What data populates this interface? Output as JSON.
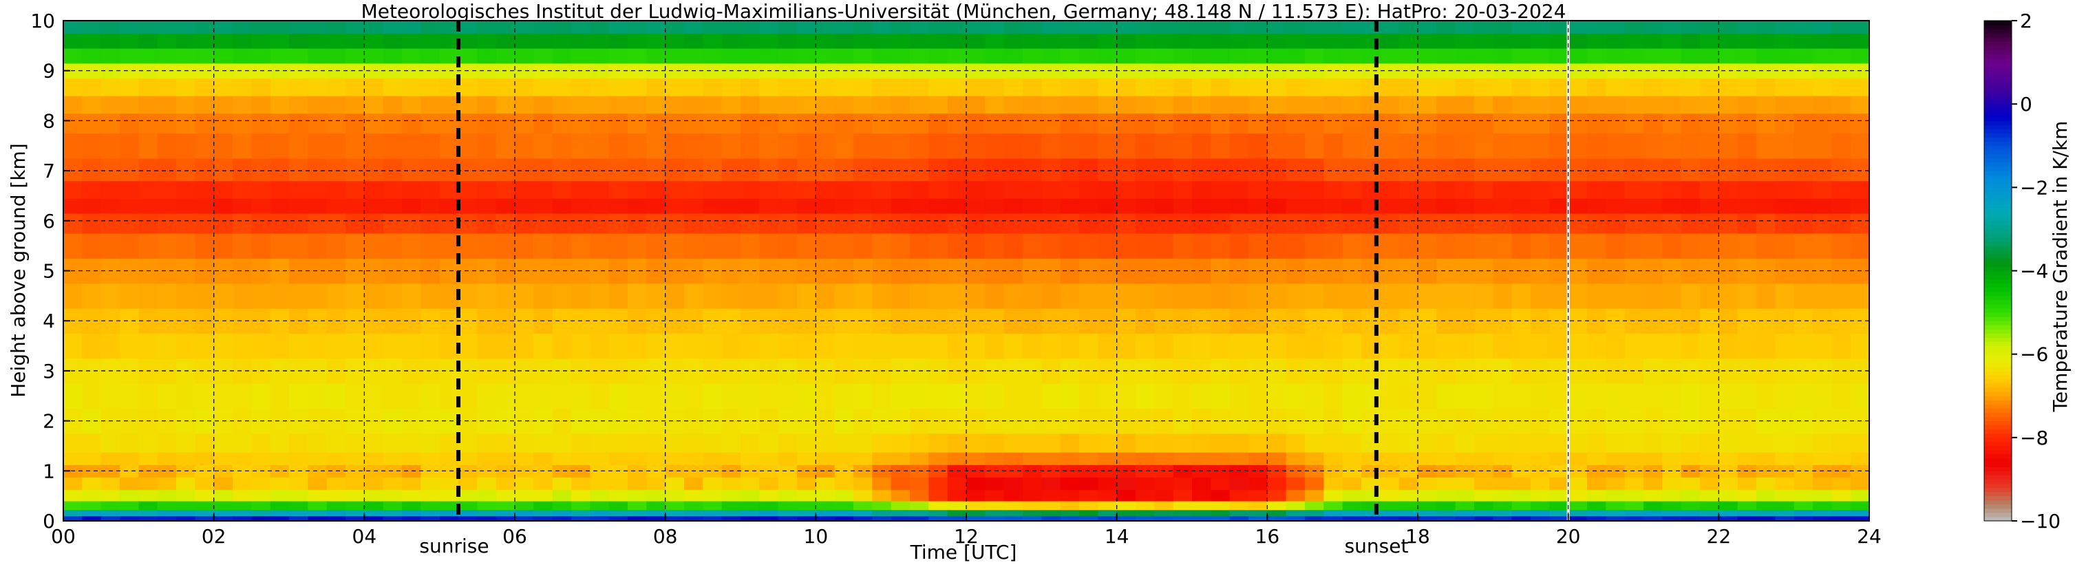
{
  "chart_data": {
    "type": "heatmap",
    "title": "Meteorologisches Institut der Ludwig-Maximilians-Universität (München, Germany; 48.148 N / 11.573 E):    HatPro: 20-03-2024",
    "xlabel": "Time [UTC]",
    "ylabel": "Height above ground [km]",
    "xlim": [
      0,
      24
    ],
    "ylim": [
      0,
      10
    ],
    "x_ticks": [
      "00",
      "02",
      "04",
      "06",
      "08",
      "10",
      "12",
      "14",
      "16",
      "18",
      "20",
      "22",
      "24"
    ],
    "y_ticks": [
      "0",
      "1",
      "2",
      "3",
      "4",
      "5",
      "6",
      "7",
      "8",
      "9",
      "10"
    ],
    "grid": true,
    "colorbar": {
      "label": "Temperature Gradient in K/km",
      "range": [
        -10,
        2
      ],
      "ticks": [
        "2",
        "0",
        "−2",
        "−4",
        "−6",
        "−8",
        "−10"
      ]
    },
    "annotations": [
      {
        "text": "sunrise",
        "x": 5.25
      },
      {
        "text": "sunset",
        "x": 17.45
      }
    ],
    "missing_data_at": [
      20.0
    ],
    "profile_levels_km": [
      0.05,
      0.15,
      0.3,
      0.5,
      0.75,
      1.0,
      1.25,
      1.5,
      2.0,
      2.5,
      3.0,
      3.5,
      4.0,
      4.5,
      5.0,
      5.5,
      6.0,
      6.3,
      6.6,
      7.0,
      7.5,
      8.0,
      8.3,
      8.7,
      9.0,
      9.3,
      9.6,
      9.9
    ],
    "gradient_profile_night_K_per_km": [
      -0.5,
      -2.5,
      -4.8,
      -6.0,
      -6.6,
      -6.8,
      -6.6,
      -6.4,
      -6.3,
      -6.3,
      -6.4,
      -6.6,
      -6.7,
      -6.9,
      -7.1,
      -7.4,
      -7.8,
      -8.2,
      -8.0,
      -7.6,
      -7.4,
      -7.3,
      -7.0,
      -6.6,
      -6.0,
      -4.8,
      -4.0,
      -3.3
    ],
    "gradient_profile_midday_K_per_km": [
      -1.0,
      -3.5,
      -6.5,
      -8.4,
      -8.5,
      -8.2,
      -7.3,
      -6.7,
      -6.4,
      -6.3,
      -6.4,
      -6.6,
      -6.8,
      -7.0,
      -7.2,
      -7.6,
      -7.9,
      -8.3,
      -8.1,
      -7.9,
      -7.6,
      -7.4,
      -7.0,
      -6.6,
      -5.9,
      -4.8,
      -4.0,
      -3.3
    ]
  }
}
